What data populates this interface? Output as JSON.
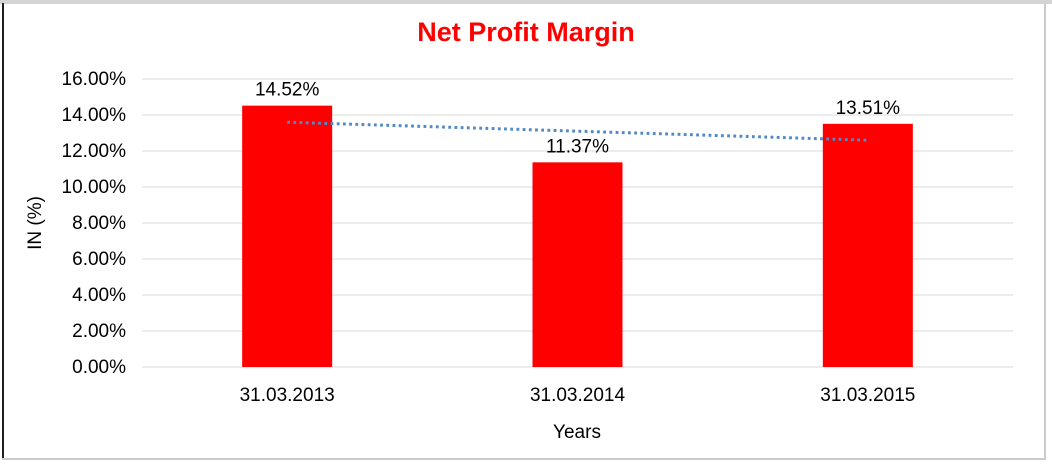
{
  "chart_data": {
    "type": "bar",
    "title": "Net Profit Margin",
    "categories": [
      "31.03.2013",
      "31.03.2014",
      "31.03.2015"
    ],
    "series": [
      {
        "name": "Net Profit Margin",
        "values": [
          14.52,
          11.37,
          13.51
        ],
        "color": "#FF0000"
      }
    ],
    "data_labels": [
      "14.52%",
      "11.37%",
      "13.51%"
    ],
    "xlabel": "Years",
    "ylabel": "IN (%)",
    "ylim": [
      0,
      16
    ],
    "ytick_step": 2,
    "ytick_labels": [
      "0.00%",
      "2.00%",
      "4.00%",
      "6.00%",
      "8.00%",
      "10.00%",
      "12.00%",
      "14.00%",
      "16.00%"
    ],
    "grid": true,
    "legend_position": "none",
    "trendline": {
      "shape": "linear",
      "style": "dotted",
      "values": [
        13.6,
        12.6
      ]
    },
    "colors": {
      "title": "#FF0000",
      "bar": "#FF0000",
      "trendline": "#5089C7",
      "gridline": "#D9D9D9",
      "text": "#000000"
    }
  }
}
